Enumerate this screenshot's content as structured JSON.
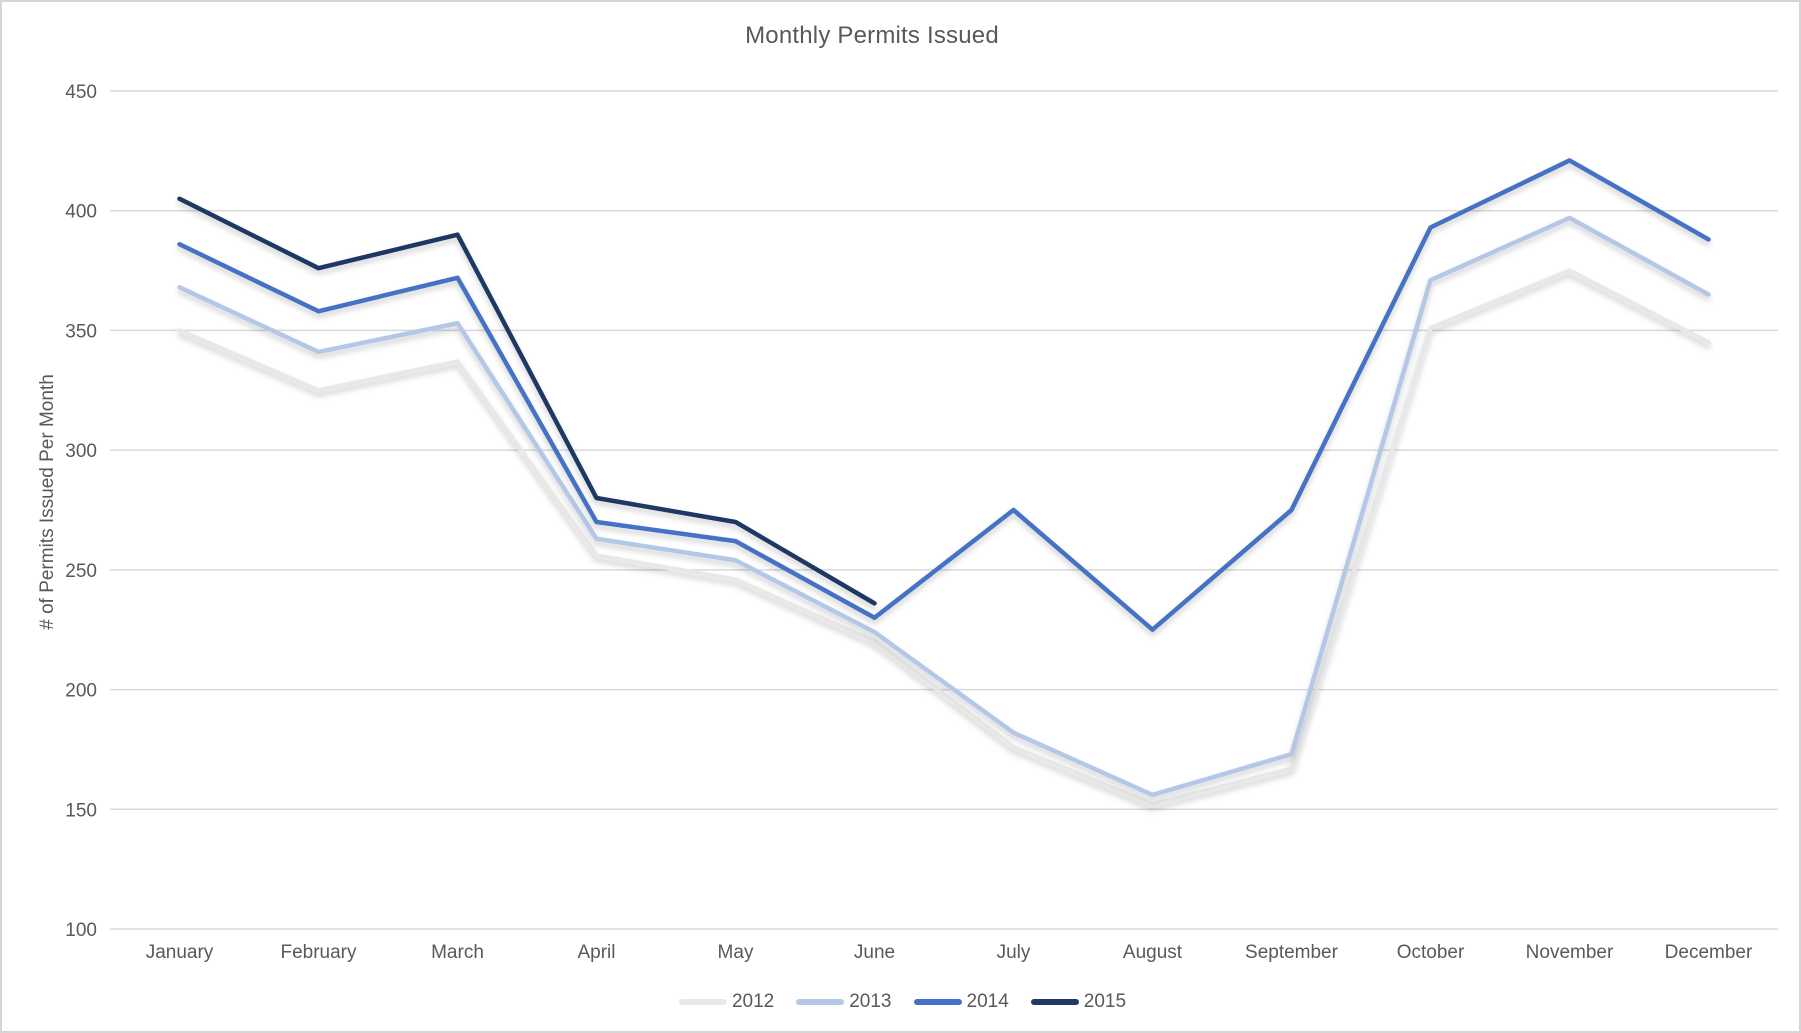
{
  "chart_data": {
    "type": "line",
    "title": "Monthly Permits Issued",
    "xlabel": "",
    "ylabel": "# of Permits Issued Per Month",
    "categories": [
      "January",
      "February",
      "March",
      "April",
      "May",
      "June",
      "July",
      "August",
      "September",
      "October",
      "November",
      "December"
    ],
    "y_ticks": [
      450,
      400,
      350,
      300,
      250,
      200,
      150,
      100
    ],
    "ylim": [
      100,
      450
    ],
    "grid": true,
    "legend_position": "bottom",
    "gridline_color": "#d9d9d9",
    "text_color": "#595959",
    "series": [
      {
        "name": "2012",
        "color": "#e8e8e8",
        "values": [
          350,
          325,
          337,
          256,
          246,
          220,
          176,
          152,
          167,
          351,
          375,
          345
        ]
      },
      {
        "name": "2013",
        "color": "#b4c7e7",
        "values": [
          368,
          341,
          353,
          263,
          254,
          224,
          182,
          156,
          173,
          371,
          397,
          365
        ]
      },
      {
        "name": "2014",
        "color": "#4472c4",
        "values": [
          386,
          358,
          372,
          270,
          262,
          230,
          275,
          225,
          275,
          393,
          421,
          388
        ]
      },
      {
        "name": "2015",
        "color": "#1f3864",
        "values": [
          405,
          376,
          390,
          280,
          270,
          236,
          null,
          null,
          null,
          null,
          null,
          null
        ]
      }
    ]
  }
}
